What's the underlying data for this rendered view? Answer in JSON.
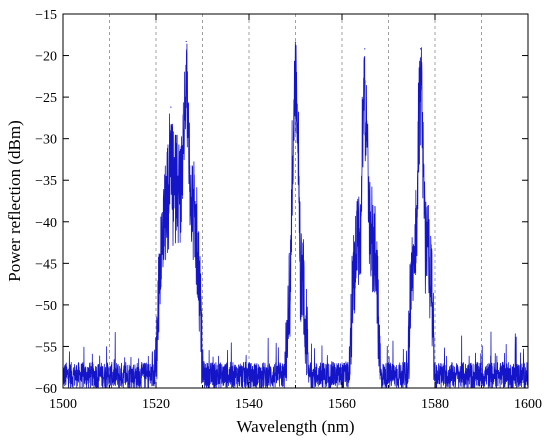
{
  "chart_data": {
    "type": "line",
    "title": "",
    "xlabel": "Wavelength (nm)",
    "ylabel": "Power reflection (dBm)",
    "xlim": [
      1500,
      1600
    ],
    "ylim": [
      -60,
      -15
    ],
    "x_ticks": [
      1500,
      1520,
      1540,
      1560,
      1580,
      1600
    ],
    "x_minor_ticks": [
      1510,
      1530,
      1550,
      1570,
      1590
    ],
    "y_ticks": [
      -60,
      -55,
      -50,
      -45,
      -40,
      -35,
      -30,
      -25,
      -20,
      -15
    ],
    "x_tick_labels": [
      "1500",
      "1520",
      "1540",
      "1560",
      "1580",
      "1600"
    ],
    "y_tick_labels": [
      "−60",
      "−55",
      "−50",
      "−45",
      "−40",
      "−35",
      "−30",
      "−25",
      "−20",
      "−15"
    ],
    "grid": "vertical dashed at every 10 nm",
    "legend": "none",
    "colors": {
      "series": "#1414c8",
      "grid": "#a0a0a0",
      "axis": "#000000"
    },
    "series": [
      {
        "noise_floor_dBm": -58.5,
        "peaks": [
          {
            "center": 1526.5,
            "peak": -18.3
          },
          {
            "center": 1523.2,
            "peak": -26.2
          },
          {
            "center": 1550.0,
            "peak": -18.4
          },
          {
            "center": 1564.9,
            "peak": -19.2
          },
          {
            "center": 1576.9,
            "peak": -19.2
          }
        ],
        "bands": [
          {
            "start": 1520,
            "end": 1530,
            "level": -30
          },
          {
            "start": 1547.5,
            "end": 1553,
            "level": -40
          },
          {
            "start": 1561.5,
            "end": 1568.5,
            "level": -35
          },
          {
            "start": 1574,
            "end": 1580,
            "level": -36
          }
        ]
      }
    ]
  }
}
